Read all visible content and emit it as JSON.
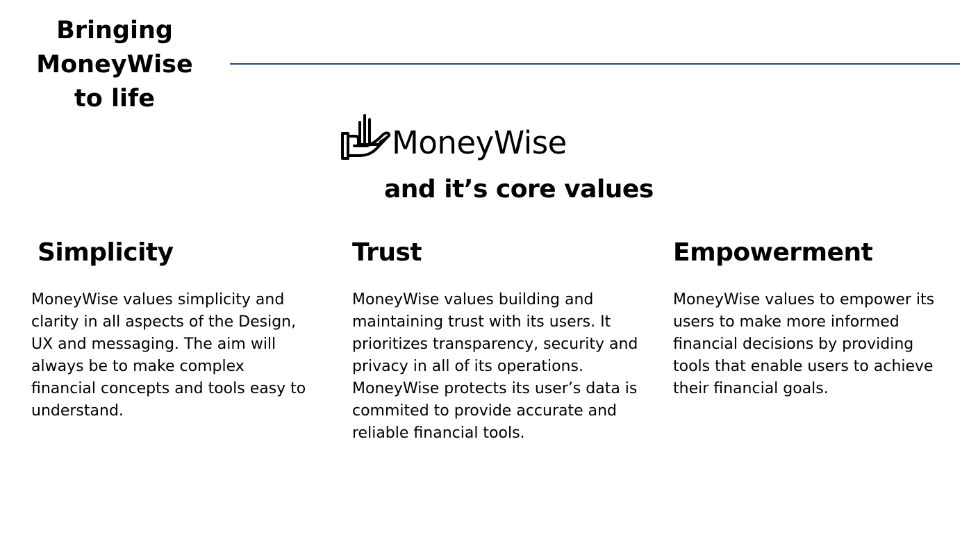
{
  "slide": {
    "title_lines": [
      "Bringing",
      "MoneyWise",
      "to life"
    ],
    "subtitle": "and it’s core values"
  },
  "brand": {
    "name": "MoneyWise",
    "icon": "hand-growth-icon",
    "rule_color": "#1f4e79"
  },
  "values": [
    {
      "heading": "Simplicity",
      "body": " MoneyWise values simplicity and\nclarity in all aspects of the Design,\nUX and messaging. The aim will\nalways be to make complex\nfinancial concepts and tools easy to\nunderstand."
    },
    {
      "heading": "Trust",
      "body": "MoneyWise values building and\nmaintaining trust with its users. It\nprioritizes transparency, security and\nprivacy in all of its operations.\nMoneyWise protects its user’s data is\ncommited to provide accurate and\nreliable financial tools."
    },
    {
      "heading": "Empowerment",
      "body": "MoneyWise values to empower its\nusers to make more informed\nfinancial decisions by providing\ntools that enable users to achieve\ntheir financial goals."
    }
  ]
}
